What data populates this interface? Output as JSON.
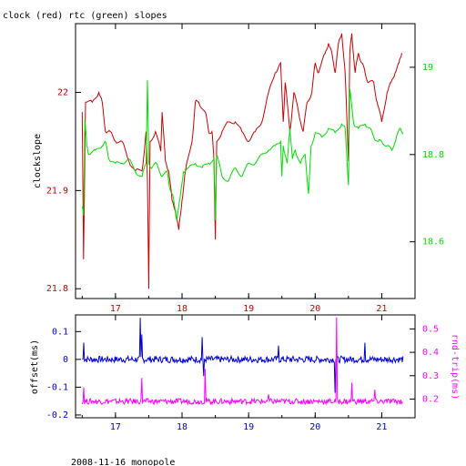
{
  "header": {
    "title": "clock (red) rtc (green) slopes"
  },
  "footer": {
    "caption": "2008-11-16 monopole"
  },
  "chart_data": [
    {
      "type": "line",
      "ylabel_left": "clockslope",
      "ylabel_right": "",
      "xlim": [
        16.4,
        21.5
      ],
      "ylim_left": [
        21.79,
        22.07
      ],
      "ylim_right": [
        18.47,
        19.1
      ],
      "x_ticks": [
        "17",
        "18",
        "19",
        "20",
        "21"
      ],
      "y_ticks_left": [
        "21.8",
        "21.9",
        "22"
      ],
      "y_ticks_right": [
        "18.6",
        "18.8",
        "19"
      ],
      "colors": {
        "clock": "#cc0000",
        "rtc": "#00dd00"
      },
      "series": [
        {
          "axis": "left",
          "color": "#cc0000",
          "points": [
            [
              16.5,
              21.98
            ],
            [
              16.52,
              21.83
            ],
            [
              16.55,
              21.99
            ],
            [
              16.65,
              21.99
            ],
            [
              16.75,
              22.0
            ],
            [
              16.8,
              21.99
            ],
            [
              16.85,
              21.96
            ],
            [
              16.92,
              21.96
            ],
            [
              17.0,
              21.95
            ],
            [
              17.1,
              21.95
            ],
            [
              17.2,
              21.93
            ],
            [
              17.3,
              21.92
            ],
            [
              17.4,
              21.92
            ],
            [
              17.46,
              21.96
            ],
            [
              17.48,
              21.91
            ],
            [
              17.5,
              21.8
            ],
            [
              17.52,
              21.95
            ],
            [
              17.6,
              21.96
            ],
            [
              17.68,
              21.94
            ],
            [
              17.7,
              21.98
            ],
            [
              17.75,
              21.93
            ],
            [
              17.8,
              21.92
            ],
            [
              17.85,
              21.89
            ],
            [
              17.9,
              21.88
            ],
            [
              17.95,
              21.86
            ],
            [
              18.0,
              21.89
            ],
            [
              18.05,
              21.92
            ],
            [
              18.15,
              21.95
            ],
            [
              18.2,
              21.99
            ],
            [
              18.25,
              21.99
            ],
            [
              18.35,
              21.98
            ],
            [
              18.4,
              21.96
            ],
            [
              18.45,
              21.96
            ],
            [
              18.48,
              21.93
            ],
            [
              18.5,
              21.85
            ],
            [
              18.52,
              21.95
            ],
            [
              18.6,
              21.96
            ],
            [
              18.7,
              21.97
            ],
            [
              18.8,
              21.97
            ],
            [
              18.9,
              21.96
            ],
            [
              19.0,
              21.95
            ],
            [
              19.1,
              21.96
            ],
            [
              19.2,
              21.97
            ],
            [
              19.3,
              22.0
            ],
            [
              19.4,
              22.02
            ],
            [
              19.48,
              22.03
            ],
            [
              19.52,
              21.97
            ],
            [
              19.55,
              22.01
            ],
            [
              19.62,
              21.96
            ],
            [
              19.68,
              22.0
            ],
            [
              19.75,
              21.98
            ],
            [
              19.82,
              21.96
            ],
            [
              19.88,
              21.99
            ],
            [
              19.95,
              22.0
            ],
            [
              20.0,
              22.03
            ],
            [
              20.05,
              22.02
            ],
            [
              20.15,
              22.04
            ],
            [
              20.2,
              22.05
            ],
            [
              20.25,
              22.04
            ],
            [
              20.3,
              22.02
            ],
            [
              20.35,
              22.05
            ],
            [
              20.4,
              22.06
            ],
            [
              20.45,
              22.02
            ],
            [
              20.5,
              21.93
            ],
            [
              20.52,
              22.04
            ],
            [
              20.55,
              22.06
            ],
            [
              20.6,
              22.02
            ],
            [
              20.65,
              22.04
            ],
            [
              20.7,
              22.03
            ],
            [
              20.75,
              22.02
            ],
            [
              20.8,
              22.01
            ],
            [
              20.88,
              22.01
            ],
            [
              20.93,
              21.99
            ],
            [
              21.0,
              21.97
            ],
            [
              21.08,
              22.0
            ],
            [
              21.14,
              22.01
            ],
            [
              21.2,
              22.02
            ],
            [
              21.26,
              22.03
            ],
            [
              21.3,
              22.04
            ]
          ]
        },
        {
          "axis": "right",
          "color": "#00dd00",
          "points": [
            [
              16.5,
              18.68
            ],
            [
              16.52,
              18.66
            ],
            [
              16.54,
              18.88
            ],
            [
              16.57,
              18.82
            ],
            [
              16.6,
              18.8
            ],
            [
              16.7,
              18.81
            ],
            [
              16.8,
              18.82
            ],
            [
              16.85,
              18.83
            ],
            [
              16.9,
              18.79
            ],
            [
              17.0,
              18.78
            ],
            [
              17.1,
              18.78
            ],
            [
              17.2,
              18.79
            ],
            [
              17.3,
              18.76
            ],
            [
              17.4,
              18.75
            ],
            [
              17.46,
              18.78
            ],
            [
              17.48,
              18.97
            ],
            [
              17.5,
              18.78
            ],
            [
              17.55,
              18.77
            ],
            [
              17.62,
              18.78
            ],
            [
              17.7,
              18.75
            ],
            [
              17.78,
              18.76
            ],
            [
              17.82,
              18.72
            ],
            [
              17.87,
              18.7
            ],
            [
              17.92,
              18.65
            ],
            [
              17.97,
              18.7
            ],
            [
              18.02,
              18.76
            ],
            [
              18.1,
              18.77
            ],
            [
              18.2,
              18.78
            ],
            [
              18.3,
              18.77
            ],
            [
              18.4,
              18.78
            ],
            [
              18.48,
              18.79
            ],
            [
              18.5,
              18.65
            ],
            [
              18.52,
              18.8
            ],
            [
              18.6,
              18.75
            ],
            [
              18.7,
              18.74
            ],
            [
              18.8,
              18.77
            ],
            [
              18.9,
              18.75
            ],
            [
              19.0,
              18.78
            ],
            [
              19.1,
              18.78
            ],
            [
              19.2,
              18.8
            ],
            [
              19.3,
              18.81
            ],
            [
              19.4,
              18.82
            ],
            [
              19.48,
              18.83
            ],
            [
              19.5,
              18.75
            ],
            [
              19.52,
              18.82
            ],
            [
              19.58,
              18.78
            ],
            [
              19.62,
              18.86
            ],
            [
              19.66,
              18.79
            ],
            [
              19.7,
              18.81
            ],
            [
              19.78,
              18.78
            ],
            [
              19.85,
              18.8
            ],
            [
              19.9,
              18.71
            ],
            [
              19.94,
              18.82
            ],
            [
              20.0,
              18.85
            ],
            [
              20.1,
              18.84
            ],
            [
              20.2,
              18.86
            ],
            [
              20.3,
              18.85
            ],
            [
              20.4,
              18.87
            ],
            [
              20.45,
              18.86
            ],
            [
              20.5,
              18.73
            ],
            [
              20.52,
              18.95
            ],
            [
              20.58,
              18.87
            ],
            [
              20.65,
              18.86
            ],
            [
              20.75,
              18.87
            ],
            [
              20.82,
              18.86
            ],
            [
              20.88,
              18.84
            ],
            [
              20.95,
              18.83
            ],
            [
              21.0,
              18.83
            ],
            [
              21.08,
              18.82
            ],
            [
              21.15,
              18.81
            ],
            [
              21.22,
              18.84
            ],
            [
              21.28,
              18.86
            ],
            [
              21.32,
              18.85
            ]
          ]
        }
      ]
    },
    {
      "type": "line",
      "ylabel_left": "offset(ms)",
      "ylabel_right": "rnd-trip(ms)",
      "xlim": [
        16.4,
        21.5
      ],
      "ylim_left": [
        -0.21,
        0.16
      ],
      "ylim_right": [
        0.12,
        0.56
      ],
      "x_ticks": [
        "17",
        "18",
        "19",
        "20",
        "21"
      ],
      "y_ticks_left": [
        "-0.2",
        "-0.1",
        "0",
        "0.1"
      ],
      "y_ticks_right": [
        "0.2",
        "0.3",
        "0.4",
        "0.5"
      ],
      "colors": {
        "offset": "#0000dd",
        "rndtrip": "#ff00ff"
      },
      "series": [
        {
          "axis": "left",
          "color": "#0000dd",
          "base": 0.0,
          "noise": 0.012,
          "spikes": [
            [
              16.52,
              0.06
            ],
            [
              17.37,
              0.15
            ],
            [
              17.4,
              0.09
            ],
            [
              18.3,
              0.08
            ],
            [
              18.33,
              -0.06
            ],
            [
              19.45,
              0.05
            ],
            [
              20.3,
              -0.12
            ],
            [
              20.75,
              0.06
            ]
          ]
        },
        {
          "axis": "right",
          "color": "#ff00ff",
          "base": 0.19,
          "noise": 0.012,
          "spikes": [
            [
              16.52,
              0.25
            ],
            [
              17.4,
              0.29
            ],
            [
              18.35,
              0.33
            ],
            [
              19.3,
              0.22
            ],
            [
              20.32,
              0.55
            ],
            [
              20.55,
              0.27
            ],
            [
              20.9,
              0.24
            ]
          ]
        }
      ]
    }
  ]
}
